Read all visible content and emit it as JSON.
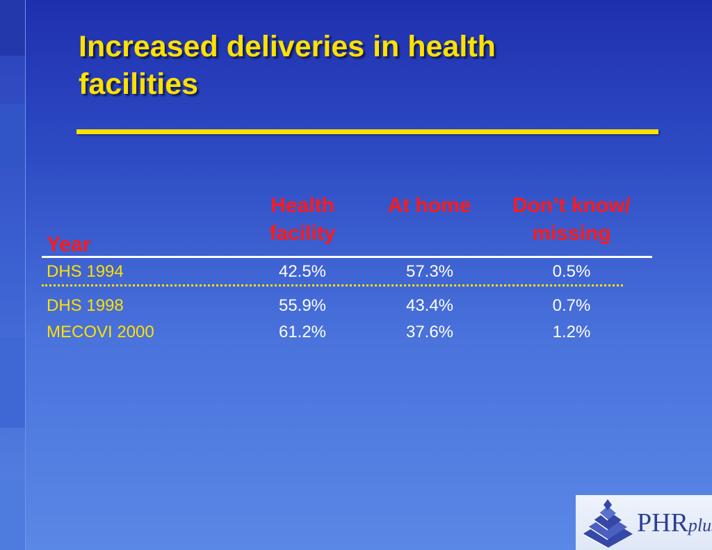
{
  "slide": {
    "title": "Increased deliveries in health facilities"
  },
  "table": {
    "headers": {
      "year": "Year",
      "health_facility_line1": "Health",
      "health_facility_line2": "facility",
      "at_home": "At home",
      "dont_know_line1": "Don’t know/",
      "dont_know_line2": "missing"
    },
    "rows": [
      {
        "year": "DHS 1994",
        "health_facility": "42.5%",
        "at_home": "57.3%",
        "dont_know": "0.5%"
      },
      {
        "year": "DHS 1998",
        "health_facility": "55.9%",
        "at_home": "43.4%",
        "dont_know": "0.7%"
      },
      {
        "year": "MECOVI 2000",
        "health_facility": "61.2%",
        "at_home": "37.6%",
        "dont_know": "1.2%"
      }
    ]
  },
  "logo": {
    "main": "PHR",
    "suffix": "plus",
    "icon": "stepped-pyramid-icon"
  },
  "colors": {
    "title": "#ffe100",
    "header": "#ff1a1a",
    "row_label": "#ffe100",
    "values": "#ffffff"
  }
}
